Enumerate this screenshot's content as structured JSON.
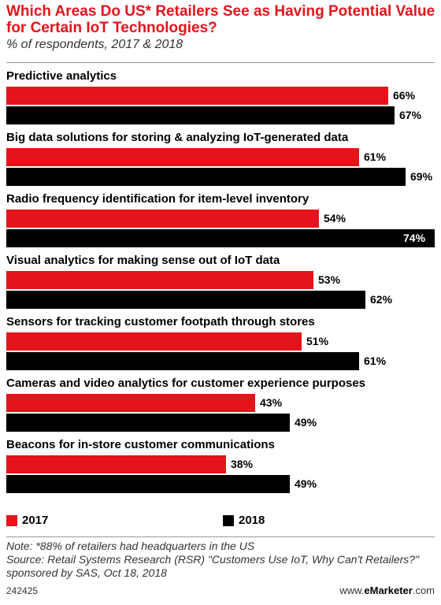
{
  "header": {
    "title": "Which Areas Do US* Retailers See as Having Potential Value for Certain IoT Technologies?",
    "subtitle": "% of respondents, 2017 & 2018"
  },
  "colors": {
    "s2017": "#e5141b",
    "s2018": "#000000"
  },
  "chart_data": {
    "type": "bar",
    "orientation": "horizontal",
    "xlim": [
      0,
      74
    ],
    "categories": [
      "Predictive analytics",
      "Big data solutions for storing & analyzing IoT-generated data",
      "Radio frequency identification for item-level inventory",
      "Visual analytics for making sense out of IoT data",
      "Sensors for tracking customer footpath through stores",
      "Cameras and video analytics for customer experience purposes",
      "Beacons for in-store customer communications"
    ],
    "series": [
      {
        "name": "2017",
        "values": [
          66,
          61,
          54,
          53,
          51,
          43,
          38
        ],
        "labels": [
          "66%",
          "61%",
          "54%",
          "53%",
          "51%",
          "43%",
          "38%"
        ]
      },
      {
        "name": "2018",
        "values": [
          67,
          69,
          74,
          62,
          61,
          49,
          49
        ],
        "labels": [
          "67%",
          "69%",
          "74%",
          "62%",
          "61%",
          "49%",
          "49%"
        ]
      }
    ],
    "legend": "bottom"
  },
  "footer": {
    "note": "Note: *88% of retailers had headquarters in the US",
    "source": "Source: Retail Systems Research (RSR) \"Customers Use IoT, Why Can't Retailers?\" sponsored by SAS, Oct 18, 2018",
    "code": "242425",
    "brand_prefix": "www.",
    "brand_name": "eMarketer",
    "brand_suffix": ".com"
  }
}
